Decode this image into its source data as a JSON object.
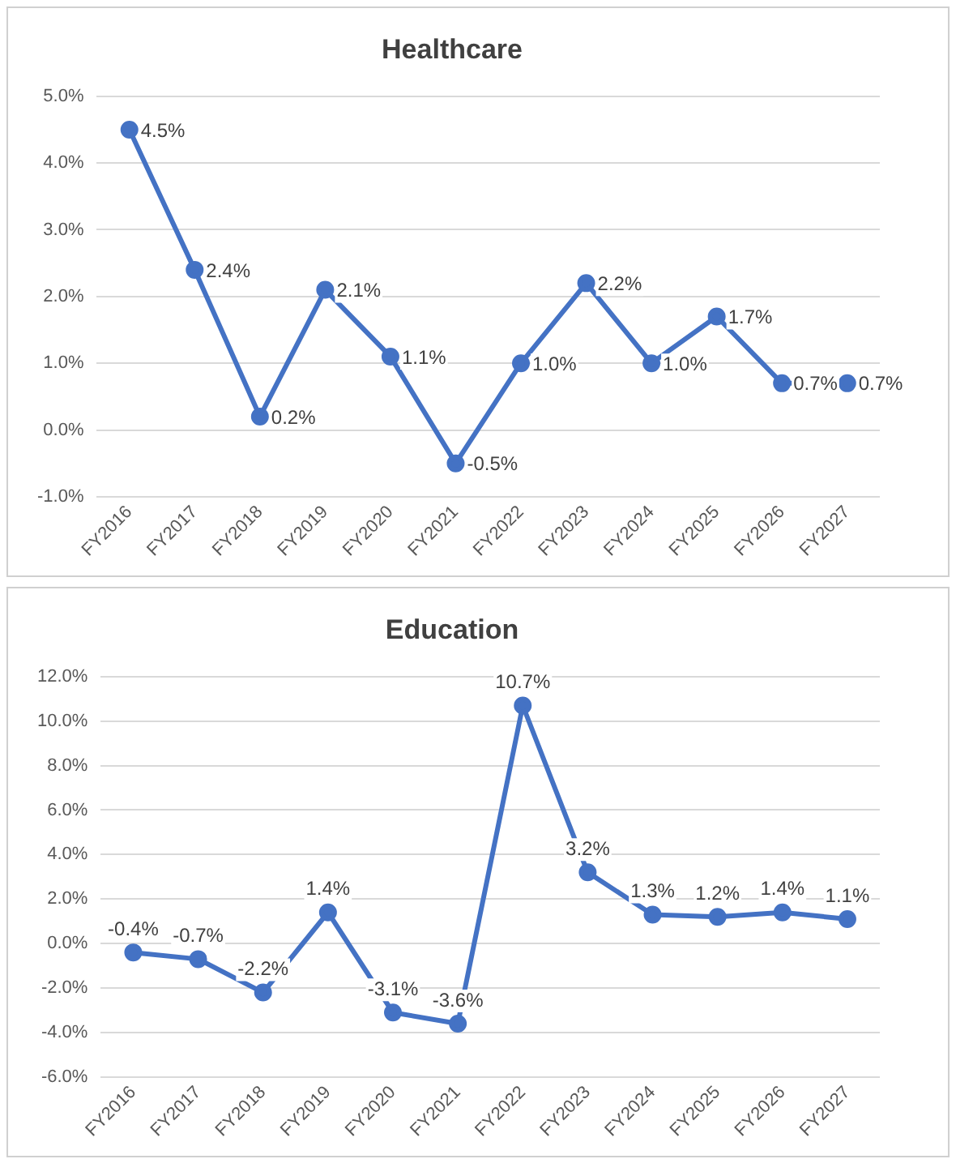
{
  "chart_data": [
    {
      "type": "line",
      "title": "Healthcare",
      "categories": [
        "FY2016",
        "FY2017",
        "FY2018",
        "FY2019",
        "FY2020",
        "FY2021",
        "FY2022",
        "FY2023",
        "FY2024",
        "FY2025",
        "FY2026",
        "FY2027"
      ],
      "series": [
        {
          "color": "#4472c4",
          "values": [
            4.5,
            2.4,
            0.2,
            2.1,
            1.1,
            -0.5,
            1.0,
            2.2,
            1.0,
            1.7,
            0.7,
            0.7
          ],
          "value_labels": [
            "4.5%",
            "2.4%",
            "0.2%",
            "2.1%",
            "1.1%",
            "-0.5%",
            "1.0%",
            "2.2%",
            "1.0%",
            "1.7%",
            "0.7%",
            "0.7%"
          ]
        }
      ],
      "ylim": [
        -1,
        5
      ],
      "yticks": [
        {
          "value": -1,
          "label": "-1.0%"
        },
        {
          "value": 0,
          "label": "0.0%"
        },
        {
          "value": 1,
          "label": "1.0%"
        },
        {
          "value": 2,
          "label": "2.0%"
        },
        {
          "value": 3,
          "label": "3.0%"
        },
        {
          "value": 4,
          "label": "4.0%"
        },
        {
          "value": 5,
          "label": "5.0%"
        }
      ],
      "grid": "y",
      "marker": "circle",
      "line_style": "solid",
      "legend": false
    },
    {
      "type": "line",
      "title": "Education",
      "categories": [
        "FY2016",
        "FY2017",
        "FY2018",
        "FY2019",
        "FY2020",
        "FY2021",
        "FY2022",
        "FY2023",
        "FY2024",
        "FY2025",
        "FY2026",
        "FY2027"
      ],
      "series": [
        {
          "color": "#4472c4",
          "values": [
            -0.4,
            -0.7,
            -2.2,
            1.4,
            -3.1,
            -3.6,
            10.7,
            3.2,
            1.3,
            1.2,
            1.4,
            1.1
          ],
          "value_labels": [
            "-0.4%",
            "-0.7%",
            "-2.2%",
            "1.4%",
            "-3.1%",
            "-3.6%",
            "10.7%",
            "3.2%",
            "1.3%",
            "1.2%",
            "1.4%",
            "1.1%"
          ]
        }
      ],
      "ylim": [
        -6,
        12
      ],
      "yticks": [
        {
          "value": -6,
          "label": "-6.0%"
        },
        {
          "value": -4,
          "label": "-4.0%"
        },
        {
          "value": -2,
          "label": "-2.0%"
        },
        {
          "value": 0,
          "label": "0.0%"
        },
        {
          "value": 2,
          "label": "2.0%"
        },
        {
          "value": 4,
          "label": "4.0%"
        },
        {
          "value": 6,
          "label": "6.0%"
        },
        {
          "value": 8,
          "label": "8.0%"
        },
        {
          "value": 10,
          "label": "10.0%"
        },
        {
          "value": 12,
          "label": "12.0%"
        }
      ],
      "grid": "y",
      "marker": "circle",
      "line_style": "solid",
      "legend": false
    }
  ]
}
